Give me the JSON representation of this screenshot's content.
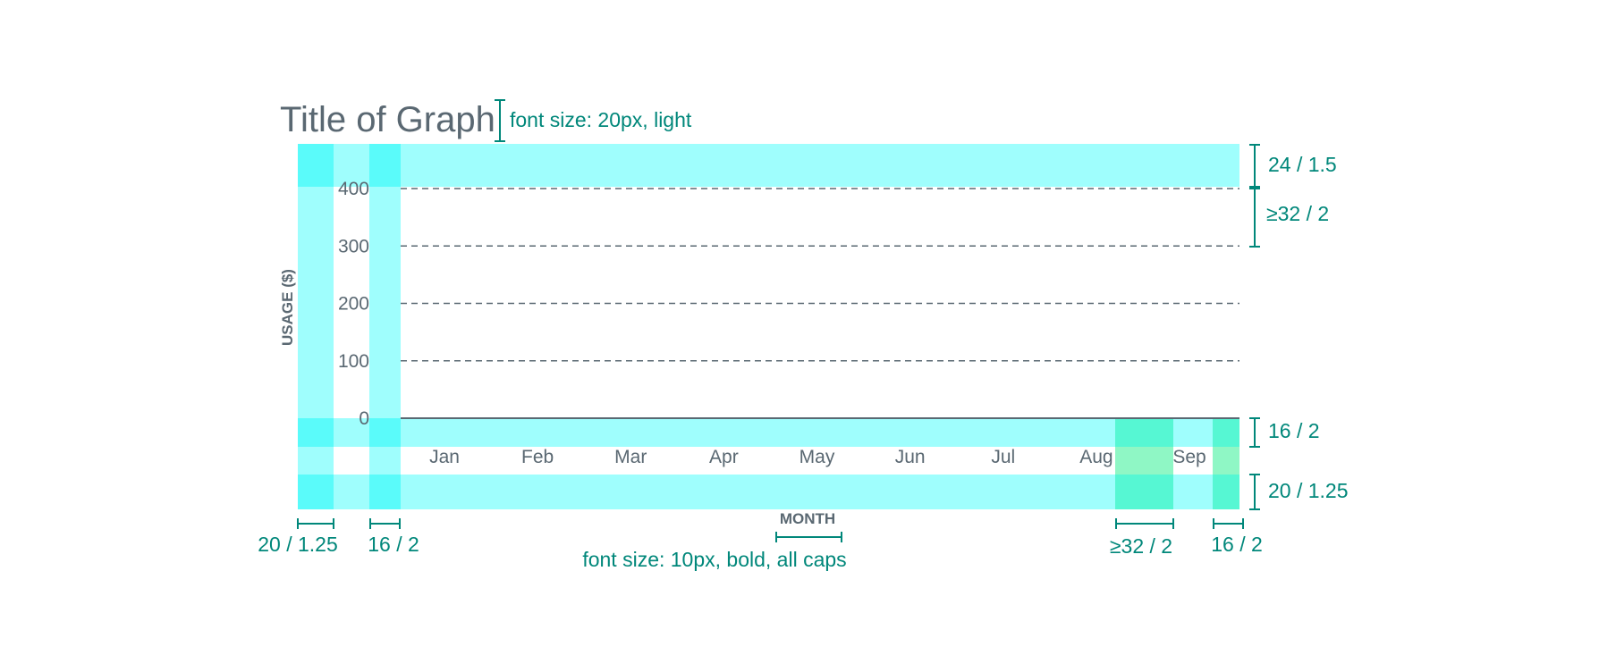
{
  "chart": {
    "title": "Title of Graph",
    "y_axis_label": "USAGE ($)",
    "x_axis_label": "MONTH"
  },
  "chart_data": {
    "type": "line",
    "title": "Title of Graph",
    "xlabel": "MONTH",
    "ylabel": "USAGE ($)",
    "categories": [
      "Jan",
      "Feb",
      "Mar",
      "Apr",
      "May",
      "Jun",
      "Jul",
      "Aug",
      "Sep"
    ],
    "y_ticks": [
      "0",
      "100",
      "200",
      "300",
      "400"
    ],
    "ylim": [
      0,
      400
    ],
    "grid": true,
    "series": []
  },
  "annotations": {
    "title_spec": "font size: 20px, light",
    "label_spec": "font size: 10px, bold, all caps",
    "top_padding": "24 / 1.5",
    "gridline_spacing": "≥32 / 2",
    "xaxis_gap": "16 / 2",
    "bottom_padding": "20 / 1.25",
    "left_padding": "20 / 1.25",
    "yaxis_gap": "16 / 2",
    "bar_spacing": "≥32 / 2",
    "right_padding": "16 / 2"
  },
  "colors": {
    "text": "#5a6872",
    "spec": "#00877a",
    "highlight": "#9ffefd",
    "highlight_dark": "#5afbfa",
    "highlight_green": "#56f7d3",
    "highlight_green_light": "#8ff7c5",
    "gridline": "#5a6872"
  }
}
